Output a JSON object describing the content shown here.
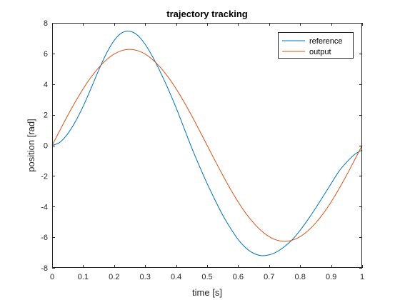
{
  "chart_data": {
    "type": "line",
    "title": "trajectory tracking",
    "xlabel": "time [s]",
    "ylabel": "position [rad]",
    "xlim": [
      0,
      1
    ],
    "ylim": [
      -8,
      8
    ],
    "xticks": [
      0,
      0.1,
      0.2,
      0.3,
      0.4,
      0.5,
      0.6,
      0.7,
      0.8,
      0.9,
      1
    ],
    "xtick_labels": [
      "0",
      "0.1",
      "0.2",
      "0.3",
      "0.4",
      "0.5",
      "0.6",
      "0.7",
      "0.8",
      "0.9",
      "1"
    ],
    "yticks": [
      -8,
      -6,
      -4,
      -2,
      0,
      2,
      4,
      6,
      8
    ],
    "ytick_labels": [
      "-8",
      "-6",
      "-4",
      "-2",
      "0",
      "2",
      "4",
      "6",
      "8"
    ],
    "grid": false,
    "legend_position": "top-right",
    "x": [
      0,
      0.025,
      0.05,
      0.075,
      0.1,
      0.125,
      0.15,
      0.175,
      0.2,
      0.225,
      0.25,
      0.275,
      0.3,
      0.325,
      0.35,
      0.375,
      0.4,
      0.425,
      0.45,
      0.475,
      0.5,
      0.525,
      0.55,
      0.575,
      0.6,
      0.625,
      0.65,
      0.675,
      0.7,
      0.725,
      0.75,
      0.775,
      0.8,
      0.825,
      0.85,
      0.875,
      0.9,
      0.925,
      0.95,
      0.975,
      1
    ],
    "series": [
      {
        "name": "reference",
        "color": "#0072BD",
        "values": [
          0.0,
          0.2,
          0.75,
          1.55,
          2.55,
          3.7,
          4.9,
          6.0,
          6.85,
          7.35,
          7.45,
          7.2,
          6.6,
          5.75,
          4.75,
          3.65,
          2.45,
          1.15,
          -0.15,
          -1.35,
          -2.5,
          -3.55,
          -4.55,
          -5.4,
          -6.15,
          -6.7,
          -7.05,
          -7.2,
          -7.15,
          -6.95,
          -6.6,
          -6.15,
          -5.55,
          -4.85,
          -4.1,
          -3.3,
          -2.5,
          -1.7,
          -1.1,
          -0.6,
          -0.3
        ]
      },
      {
        "name": "output",
        "color": "#D95319",
        "values": [
          0.0,
          0.98,
          1.94,
          2.85,
          3.69,
          4.44,
          5.07,
          5.58,
          5.96,
          6.19,
          6.27,
          6.19,
          5.96,
          5.58,
          5.07,
          4.44,
          3.69,
          2.85,
          1.94,
          0.98,
          0.0,
          -0.98,
          -1.94,
          -2.85,
          -3.69,
          -4.44,
          -5.07,
          -5.58,
          -5.96,
          -6.19,
          -6.27,
          -6.19,
          -5.96,
          -5.58,
          -5.07,
          -4.44,
          -3.69,
          -2.85,
          -1.94,
          -0.98,
          0.0
        ]
      }
    ]
  }
}
